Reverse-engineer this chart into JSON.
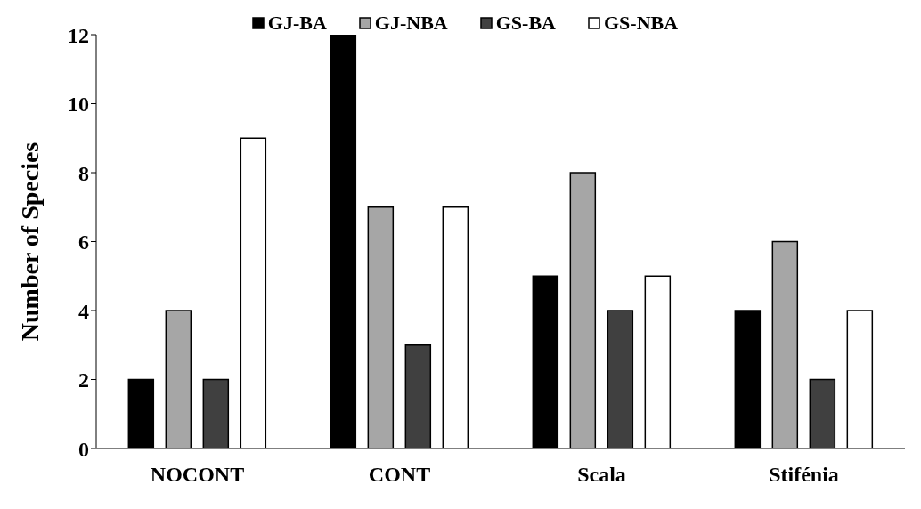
{
  "chart_data": {
    "type": "bar",
    "ylabel": "Number of Species",
    "categories": [
      "NOCONT",
      "CONT",
      "Scala",
      "Stifénia"
    ],
    "series": [
      {
        "name": "GJ-BA",
        "color": "#000000",
        "values": [
          2,
          12,
          5,
          4
        ]
      },
      {
        "name": "GJ-NBA",
        "color": "#a6a6a6",
        "values": [
          4,
          7,
          8,
          6
        ]
      },
      {
        "name": "GS-BA",
        "color": "#404040",
        "values": [
          2,
          3,
          4,
          2
        ]
      },
      {
        "name": "GS-NBA",
        "color": "#ffffff",
        "values": [
          9,
          7,
          5,
          4
        ]
      }
    ],
    "ylim": [
      0,
      12
    ],
    "yticks": [
      0,
      2,
      4,
      6,
      8,
      10,
      12
    ],
    "grid": false,
    "legend": "top"
  }
}
